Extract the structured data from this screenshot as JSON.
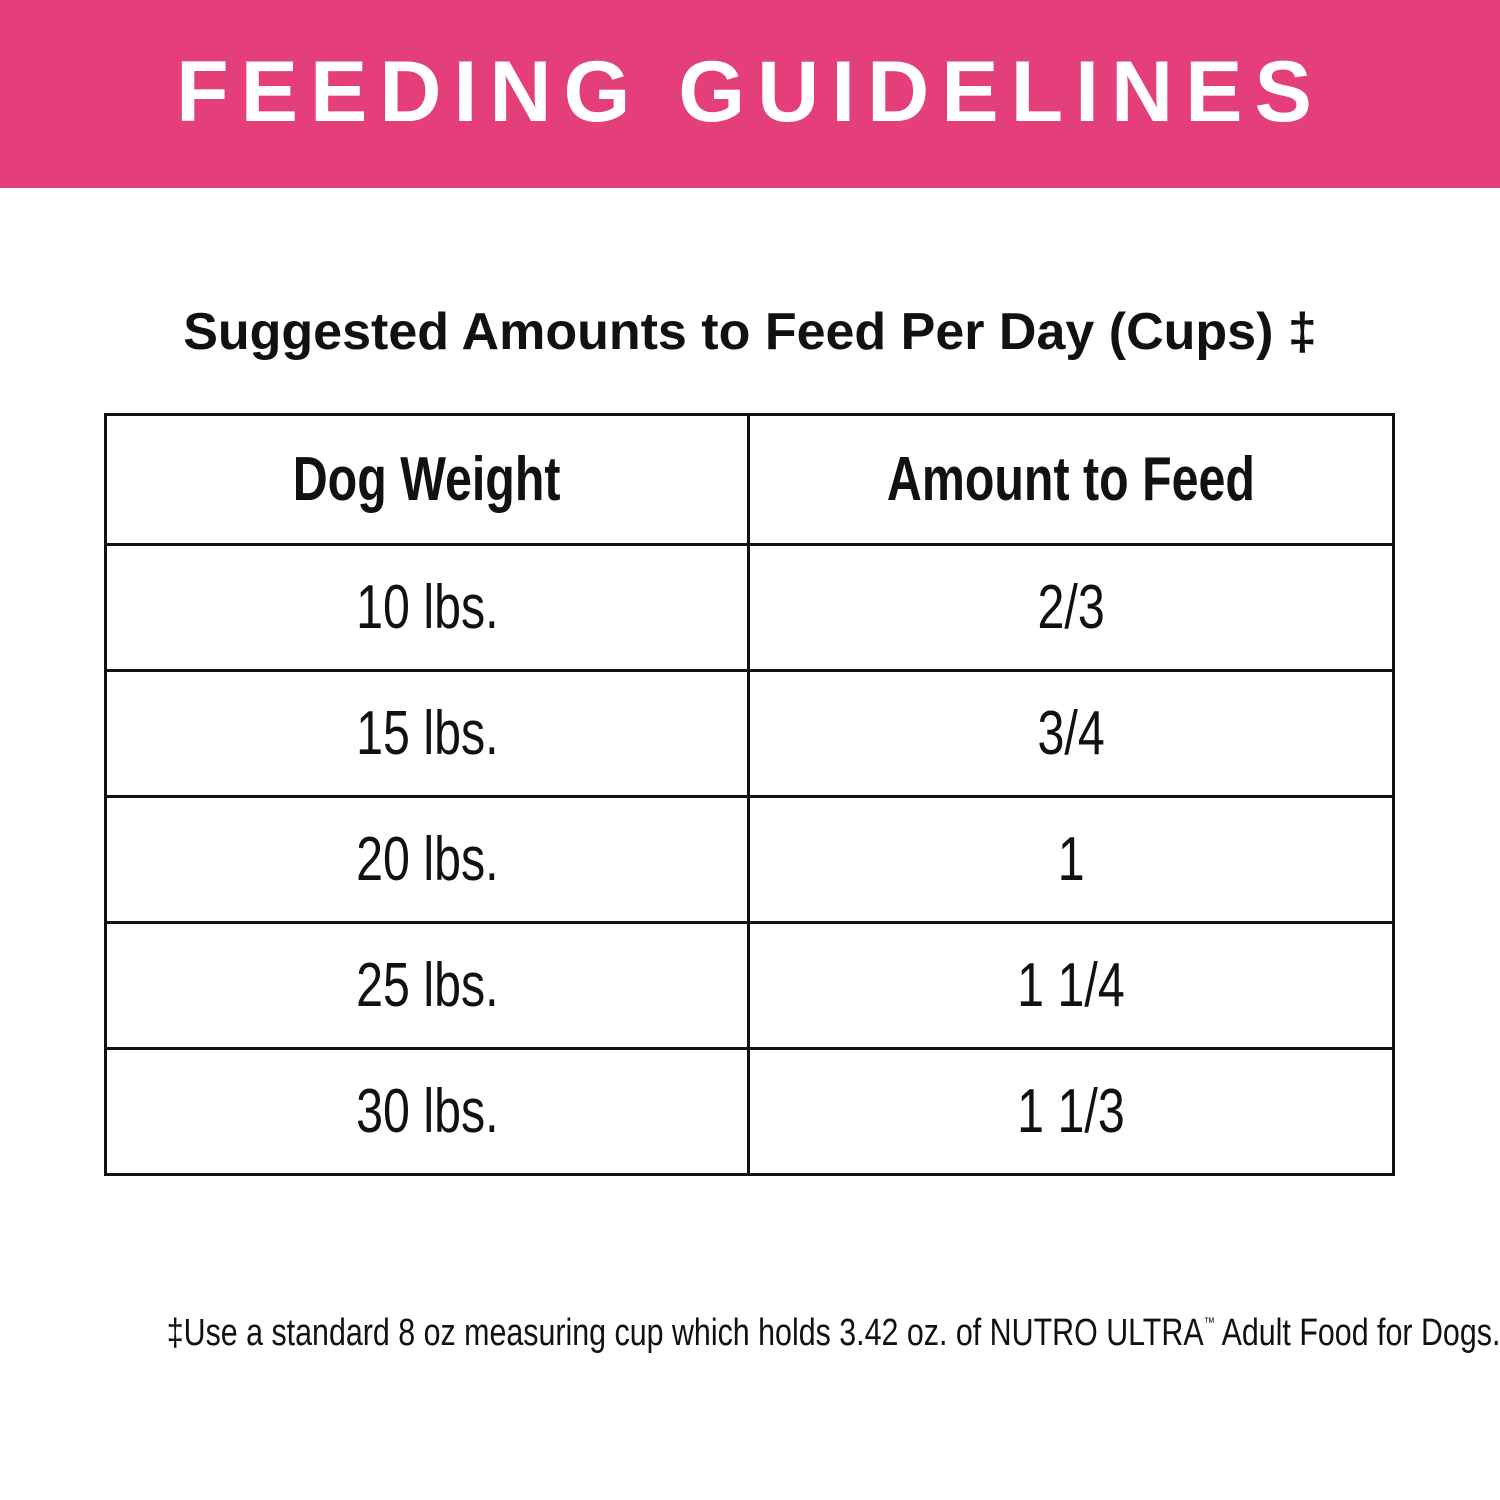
{
  "header": {
    "title": "FEEDING GUIDELINES"
  },
  "subtitle": "Suggested Amounts to Feed Per Day (Cups) ‡",
  "table": {
    "columns": [
      "Dog Weight",
      "Amount to Feed"
    ],
    "rows": [
      [
        "10 lbs.",
        "2/3"
      ],
      [
        "15 lbs.",
        "3/4"
      ],
      [
        "20 lbs.",
        "1"
      ],
      [
        "25 lbs.",
        "1 1/4"
      ],
      [
        "30 lbs.",
        "1 1/3"
      ]
    ]
  },
  "footnote": [
    "‡Use a standard 8 oz measuring cup which holds 3.42 oz. of NUTRO ULTRA",
    "™",
    " Adult Food for Dogs."
  ]
}
